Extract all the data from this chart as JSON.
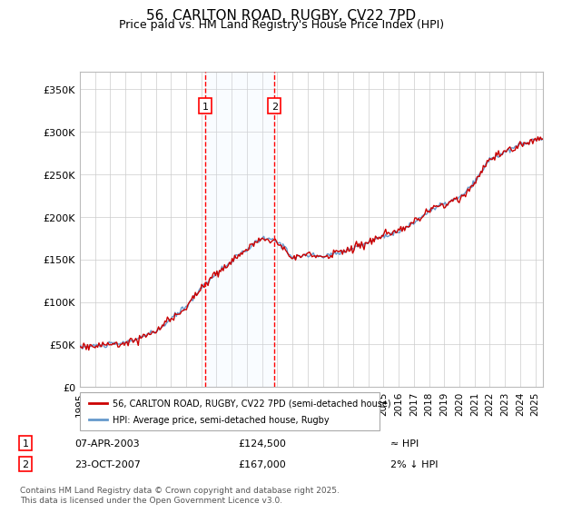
{
  "title": "56, CARLTON ROAD, RUGBY, CV22 7PD",
  "subtitle": "Price paid vs. HM Land Registry's House Price Index (HPI)",
  "ylabel_ticks": [
    "£0",
    "£50K",
    "£100K",
    "£150K",
    "£200K",
    "£250K",
    "£300K",
    "£350K"
  ],
  "ylim": [
    0,
    370000
  ],
  "xlim_start": 1995.0,
  "xlim_end": 2025.5,
  "transaction1": {
    "date": "07-APR-2003",
    "price": 124500,
    "label": "1",
    "note": "≈ HPI"
  },
  "transaction2": {
    "date": "23-OCT-2007",
    "price": 167000,
    "label": "2",
    "note": "2% ↓ HPI"
  },
  "legend_property": "56, CARLTON ROAD, RUGBY, CV22 7PD (semi-detached house)",
  "legend_hpi": "HPI: Average price, semi-detached house, Rugby",
  "property_color": "#cc0000",
  "hpi_color": "#6699cc",
  "footer": "Contains HM Land Registry data © Crown copyright and database right 2025.\nThis data is licensed under the Open Government Licence v3.0.",
  "background_color": "#ffffff",
  "plot_bg_color": "#ffffff",
  "grid_color": "#cccccc",
  "shade_color": "#ddeeff",
  "transaction1_x": 2003.27,
  "transaction2_x": 2007.81
}
